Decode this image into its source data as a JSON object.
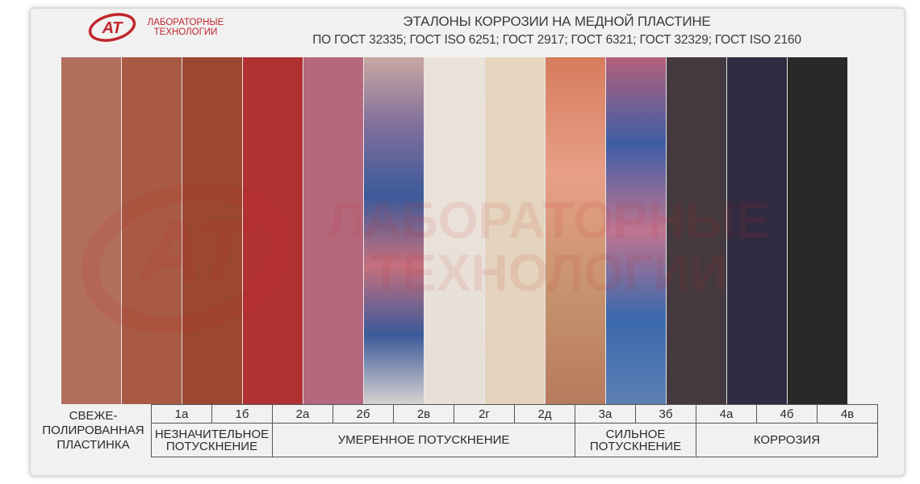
{
  "logo": {
    "mark": "АТ",
    "line1": "ЛАБОРАТОРНЫЕ",
    "line2": "ТЕХНОЛОГИИ",
    "color": "#c0262c"
  },
  "header": {
    "title": "ЭТАЛОНЫ КОРРОЗИИ НА МЕДНОЙ ПЛАСТИНЕ",
    "subtitle": "ПО ГОСТ 32335; ГОСТ ISO 6251; ГОСТ 2917; ГОСТ 6321; ГОСТ 32329; ГОСТ ISO 2160"
  },
  "watermark": {
    "line1": "ЛАБОРАТОРНЫЕ",
    "line2": "ТЕХНОЛОГИИ"
  },
  "strips": [
    {
      "label": "",
      "colors": [
        "#b26f5e",
        "#b26f5e"
      ]
    },
    {
      "label": "1а",
      "colors": [
        "#a85a44",
        "#a85a44"
      ]
    },
    {
      "label": "1б",
      "colors": [
        "#9c4732",
        "#9c4732"
      ]
    },
    {
      "label": "2а",
      "colors": [
        "#b13133",
        "#b13133"
      ]
    },
    {
      "label": "2б",
      "colors": [
        "#b5677d",
        "#b5677d"
      ]
    },
    {
      "label": "2в",
      "colors": [
        "#c9a7a0",
        "#7f6e9c",
        "#3b5a9a",
        "#c7707d",
        "#3b5a9a",
        "#d7d2d0"
      ]
    },
    {
      "label": "2г",
      "colors": [
        "#ebe3db",
        "#e8e0d8"
      ]
    },
    {
      "label": "2д",
      "colors": [
        "#e6d5bf",
        "#e3d2bc"
      ]
    },
    {
      "label": "3а",
      "colors": [
        "#d67c5c",
        "#e89f88",
        "#c7946e",
        "#b77a5e"
      ]
    },
    {
      "label": "3б",
      "colors": [
        "#b3607b",
        "#3d5ea5",
        "#c07590",
        "#3b69ad",
        "#5c7fb3"
      ]
    },
    {
      "label": "4а",
      "colors": [
        "#44393e",
        "#44393e"
      ]
    },
    {
      "label": "4б",
      "colors": [
        "#302b41",
        "#302b41"
      ]
    },
    {
      "label": "4в",
      "colors": [
        "#2a2929",
        "#2a2929"
      ]
    }
  ],
  "categories": {
    "fresh_line1": "СВЕЖЕ-",
    "fresh_line2": "ПОЛИРОВАННАЯ",
    "fresh_line3": "ПЛАСТИНКА",
    "slight_line1": "НЕЗНАЧИТЕЛЬНОЕ",
    "slight_line2": "ПОТУСКНЕНИЕ",
    "moderate": "УМЕРЕННОЕ ПОТУСКНЕНИЕ",
    "strong_line1": "СИЛЬНОЕ",
    "strong_line2": "ПОТУСКНЕНИЕ",
    "corrosion": "КОРРОЗИЯ"
  }
}
